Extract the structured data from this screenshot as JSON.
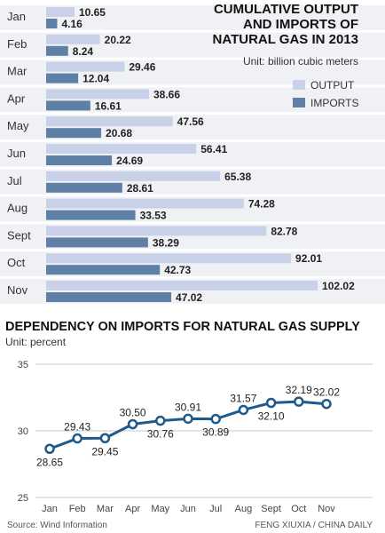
{
  "chart_data": [
    {
      "type": "bar",
      "orientation": "horizontal",
      "title": [
        "CUMULATIVE OUTPUT",
        "AND IMPORTS OF",
        "NATURAL GAS IN 2013"
      ],
      "unit": "Unit: billion cubic meters",
      "categories": [
        "Jan",
        "Feb",
        "Mar",
        "Apr",
        "May",
        "Jun",
        "Jul",
        "Aug",
        "Sept",
        "Oct",
        "Nov"
      ],
      "series": [
        {
          "name": "OUTPUT",
          "color": "#c9d1e8",
          "values": [
            10.65,
            20.22,
            29.46,
            38.66,
            47.56,
            56.41,
            65.38,
            74.28,
            82.78,
            92.01,
            102.02
          ]
        },
        {
          "name": "IMPORTS",
          "color": "#5e7fa6",
          "values": [
            4.16,
            8.24,
            12.04,
            16.61,
            20.68,
            24.69,
            28.61,
            33.53,
            38.29,
            42.73,
            47.02
          ]
        }
      ],
      "legend_position": "right",
      "row_band_color": "#f0f1f5"
    },
    {
      "type": "line",
      "title": "DEPENDENCY ON IMPORTS FOR NATURAL GAS SUPPLY",
      "unit": "Unit: percent",
      "categories": [
        "Jan",
        "Feb",
        "Mar",
        "Apr",
        "May",
        "Jun",
        "Jul",
        "Aug",
        "Sept",
        "Oct",
        "Nov"
      ],
      "series": [
        {
          "values": [
            28.65,
            29.43,
            29.45,
            30.5,
            30.76,
            30.91,
            30.89,
            31.57,
            32.1,
            32.19,
            32.02
          ],
          "labels": [
            "28.65",
            "29.43",
            "29.45",
            "30.50",
            "30.76",
            "30.91",
            "30.89",
            "31.57",
            "32.10",
            "32.19",
            "32.02"
          ],
          "color": "#1e5a8c"
        }
      ],
      "y_ticks": [
        25,
        30,
        35
      ],
      "ylim": [
        25,
        35
      ],
      "grid": true
    }
  ],
  "footer": {
    "source": "Source: Wind Information",
    "credit": "FENG XIUXIA / CHINA DAILY"
  }
}
